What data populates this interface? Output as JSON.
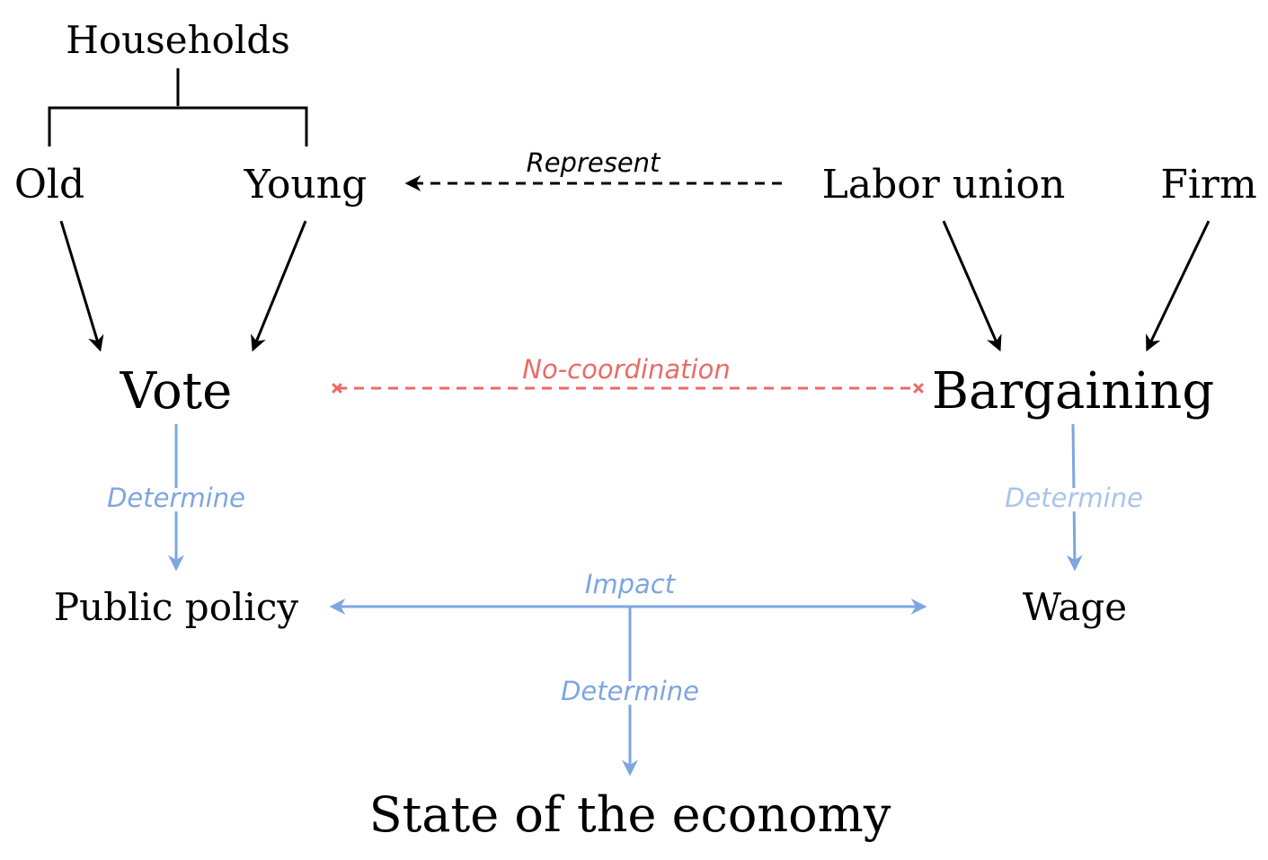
{
  "nodes": {
    "households": "Households",
    "old": "Old",
    "young": "Young",
    "labor_union": "Labor union",
    "firm": "Firm",
    "vote": "Vote",
    "bargaining": "Bargaining",
    "public_policy": "Public policy",
    "wage": "Wage",
    "state_of_economy": "State of the economy"
  },
  "edge_labels": {
    "represent": "Represent",
    "no_coordination": "No-coordination",
    "determine_vote": "Determine",
    "determine_bargaining": "Determine",
    "impact": "Impact",
    "determine_economy": "Determine"
  },
  "colors": {
    "black": "#000000",
    "blue": "#7ea6e0",
    "light_blue": "#a9c4eb",
    "red": "#ea6b66"
  }
}
